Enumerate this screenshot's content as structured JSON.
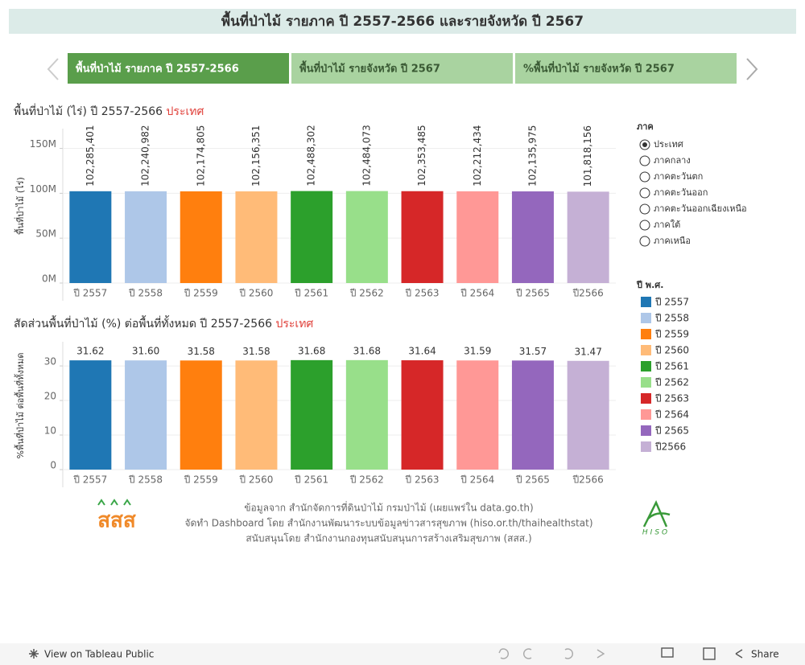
{
  "header": {
    "title": "พื้นที่ป่าไม้ รายภาค ปี 2557-2566 และรายจังหวัด ปี 2567"
  },
  "tabs": [
    "พื้นที่ป่าไม้ รายภาค ปี 2557-2566",
    "พื้นที่ป่าไม้ รายจังหวัด ปี 2567",
    "%พื้นที่ป่าไม้ รายจังหวัด ปี 2567"
  ],
  "chart_data": [
    {
      "type": "bar",
      "title": "พื้นที่ป่าไม้ (ไร่) ปี 2557-2566",
      "title_region": "ประเทศ",
      "y_label": "พื้นที่ป่าไม้ (ไร่)",
      "categories": [
        "ปี 2557",
        "ปี 2558",
        "ปี 2559",
        "ปี 2560",
        "ปี 2561",
        "ปี 2562",
        "ปี 2563",
        "ปี 2564",
        "ปี 2565",
        "ปี2566"
      ],
      "values": [
        102285401,
        102240982,
        102174805,
        102156351,
        102488302,
        102484073,
        102353485,
        102212434,
        102135975,
        101818156
      ],
      "value_labels": [
        "102,285,401",
        "102,240,982",
        "102,174,805",
        "102,156,351",
        "102,488,302",
        "102,484,073",
        "102,353,485",
        "102,212,434",
        "102,135,975",
        "101,818,156"
      ],
      "colors": [
        "#1f77b4",
        "#aec7e8",
        "#ff7f0e",
        "#ffbb78",
        "#2ca02c",
        "#98df8a",
        "#d62728",
        "#ff9896",
        "#9467bd",
        "#c5b0d5"
      ],
      "ylim": [
        0,
        172000000
      ],
      "yticks": [
        {
          "value": 0,
          "label": "0M"
        },
        {
          "value": 50000000,
          "label": "50M"
        },
        {
          "value": 100000000,
          "label": "100M"
        },
        {
          "value": 150000000,
          "label": "150M"
        }
      ],
      "grid": true
    },
    {
      "type": "bar",
      "title": "สัดส่วนพื้นที่ป่าไม้ (%) ต่อพื้นที่ทั้งหมด ปี 2557-2566",
      "title_region": "ประเทศ",
      "y_label": "%พื้นที่ป่าไม้ ต่อพื้นที่ทั้งหมด",
      "categories": [
        "ปี 2557",
        "ปี 2558",
        "ปี 2559",
        "ปี 2560",
        "ปี 2561",
        "ปี 2562",
        "ปี 2563",
        "ปี 2564",
        "ปี 2565",
        "ปี2566"
      ],
      "values": [
        31.62,
        31.6,
        31.58,
        31.58,
        31.68,
        31.68,
        31.64,
        31.59,
        31.57,
        31.47
      ],
      "value_labels": [
        "31.62",
        "31.60",
        "31.58",
        "31.58",
        "31.68",
        "31.68",
        "31.64",
        "31.59",
        "31.57",
        "31.47"
      ],
      "colors": [
        "#1f77b4",
        "#aec7e8",
        "#ff7f0e",
        "#ffbb78",
        "#2ca02c",
        "#98df8a",
        "#d62728",
        "#ff9896",
        "#9467bd",
        "#c5b0d5"
      ],
      "ylim": [
        0,
        37
      ],
      "yticks": [
        0,
        10,
        20,
        30
      ],
      "grid": true
    }
  ],
  "filter": {
    "title": "ภาค",
    "options": [
      "ประเทศ",
      "ภาคกลาง",
      "ภาคตะวันตก",
      "ภาคตะวันออก",
      "ภาคตะวันออกเฉียงเหนือ",
      "ภาคใต้",
      "ภาคเหนือ"
    ],
    "selected": 0
  },
  "legend": {
    "title": "ปี พ.ศ.",
    "items": [
      "ปี 2557",
      "ปี 2558",
      "ปี 2559",
      "ปี 2560",
      "ปี 2561",
      "ปี 2562",
      "ปี 2563",
      "ปี 2564",
      "ปี 2565",
      "ปี2566"
    ]
  },
  "footer": {
    "credits": [
      "ข้อมูลจาก สำนักจัดการที่ดินป่าไม้ กรมป่าไม้ (เผยแพร่ใน data.go.th)",
      "จัดทำ Dashboard โดย สำนักงานพัฒนาระบบข้อมูลข่าวสารสุขภาพ (hiso.or.th/thaihealthstat)",
      "สนับสนุนโดย สำนักงานกองทุนสนับสนุนการสร้างเสริมสุขภาพ (สสส.)"
    ],
    "logo_left": "สสส",
    "logo_right": "HISO"
  },
  "toolbar": {
    "view": "View on Tableau Public",
    "share": "Share"
  }
}
